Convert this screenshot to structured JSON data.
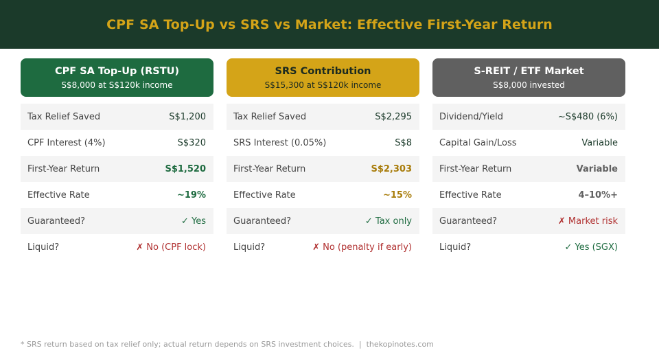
{
  "title": "CPF SA Top-Up vs SRS vs Market: Effective First-Year Return",
  "colors": {
    "header_bg": "#1b3a2a",
    "title": "#d4a418",
    "cpf": "#1e6b40",
    "srs": "#d4a418",
    "market": "#606060",
    "positive": "#1e6b40",
    "negative": "#b03030"
  },
  "cards": [
    {
      "title": "CPF SA Top-Up (RSTU)",
      "subtitle": "S$8,000 at S$120k income",
      "rows": [
        {
          "label": "Tax Relief Saved",
          "value": "S$1,200"
        },
        {
          "label": "CPF Interest (4%)",
          "value": "S$320"
        },
        {
          "label": "First-Year Return",
          "value": "S$1,520"
        },
        {
          "label": "Effective Rate",
          "value": "~19%"
        },
        {
          "label": "Guaranteed?",
          "value": "✓ Yes"
        },
        {
          "label": "Liquid?",
          "value": "✗ No (CPF lock)"
        }
      ]
    },
    {
      "title": "SRS Contribution",
      "subtitle": "S$15,300 at S$120k income",
      "rows": [
        {
          "label": "Tax Relief Saved",
          "value": "S$2,295"
        },
        {
          "label": "SRS Interest (0.05%)",
          "value": "S$8"
        },
        {
          "label": "First-Year Return",
          "value": "S$2,303"
        },
        {
          "label": "Effective Rate",
          "value": "~15%"
        },
        {
          "label": "Guaranteed?",
          "value": "✓ Tax only"
        },
        {
          "label": "Liquid?",
          "value": "✗ No (penalty if early)"
        }
      ]
    },
    {
      "title": "S-REIT / ETF Market",
      "subtitle": "S$8,000 invested",
      "rows": [
        {
          "label": "Dividend/Yield",
          "value": "~S$480 (6%)"
        },
        {
          "label": "Capital Gain/Loss",
          "value": "Variable"
        },
        {
          "label": "First-Year Return",
          "value": "Variable"
        },
        {
          "label": "Effective Rate",
          "value": "4–10%+"
        },
        {
          "label": "Guaranteed?",
          "value": "✗ Market risk"
        },
        {
          "label": "Liquid?",
          "value": "✓ Yes (SGX)"
        }
      ]
    }
  ],
  "footer": "* SRS return based on tax relief only; actual return depends on SRS investment choices.  |  thekopinotes.com"
}
